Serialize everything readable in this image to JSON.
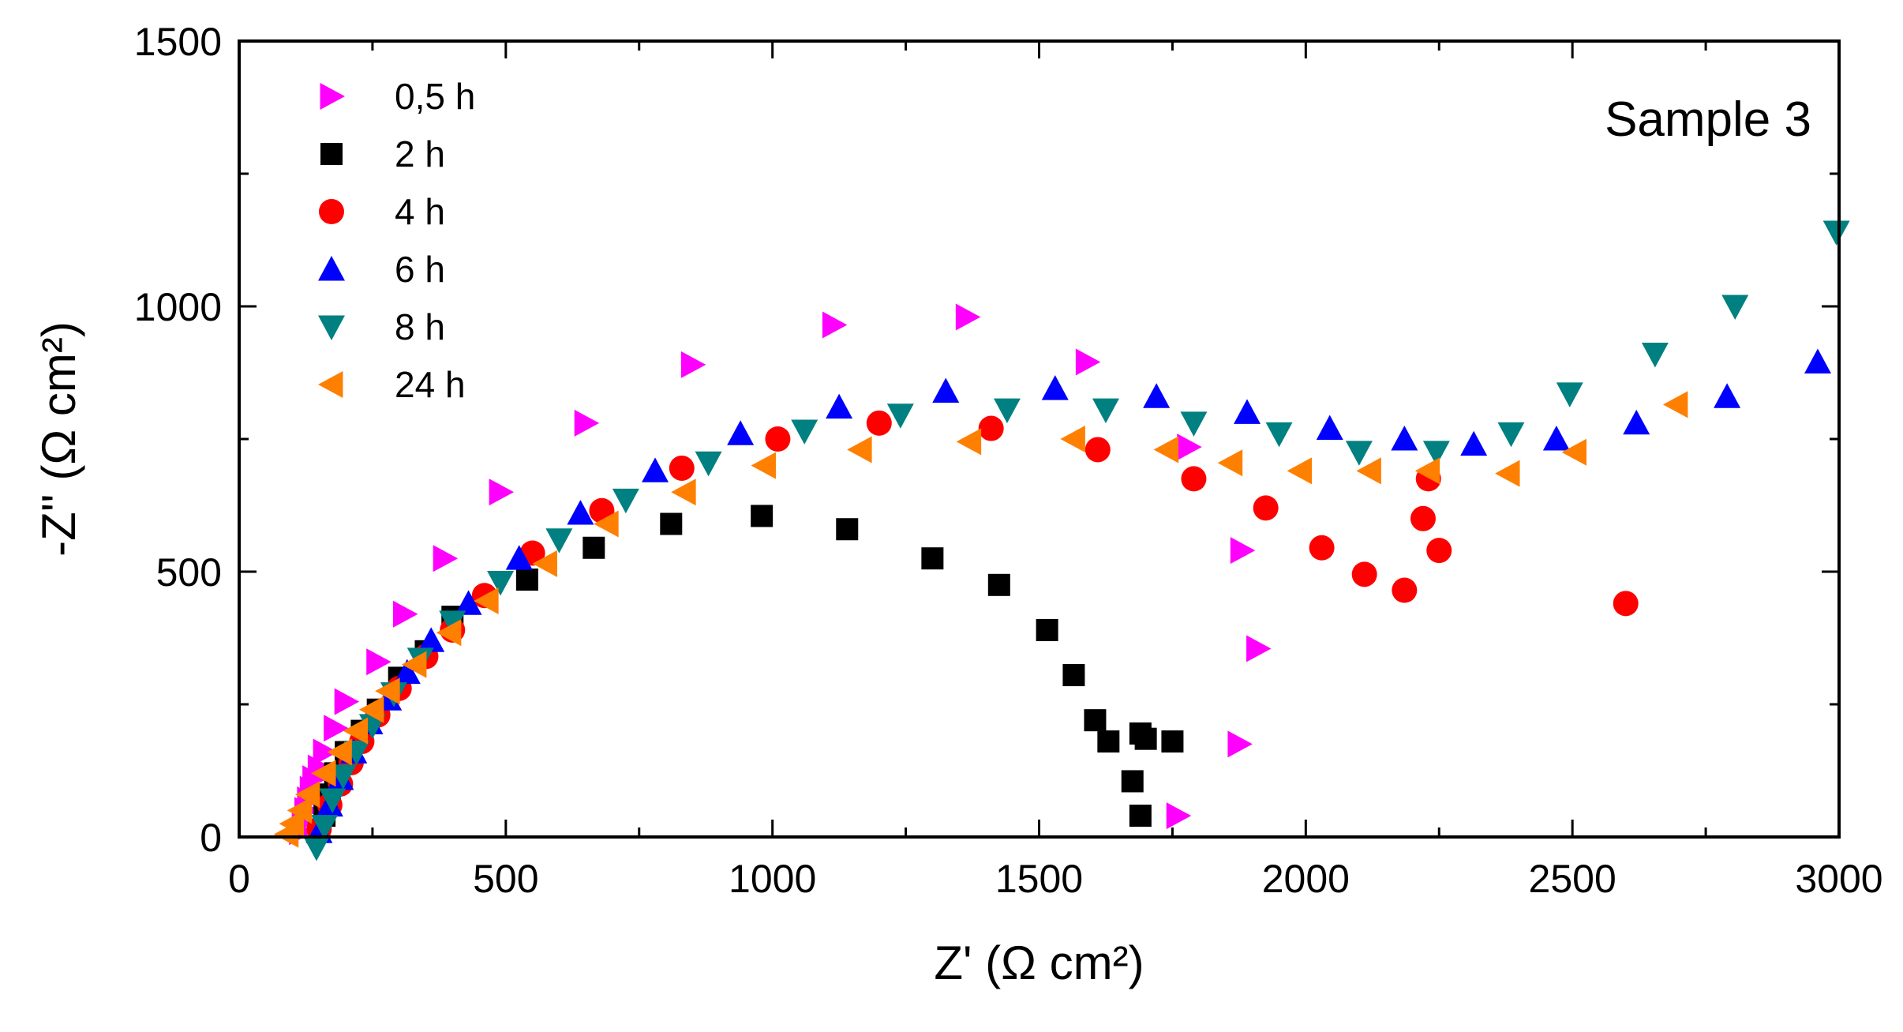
{
  "chart_data": {
    "type": "scatter",
    "title": "",
    "annotation": "Sample 3",
    "xlabel": "Z' (Ω cm²)",
    "ylabel": "-Z'' (Ω cm²)",
    "xlim": [
      0,
      3000
    ],
    "ylim": [
      0,
      1500
    ],
    "xticks": [
      0,
      500,
      1000,
      1500,
      2000,
      2500,
      3000
    ],
    "yticks": [
      0,
      500,
      1000,
      1500
    ],
    "grid": false,
    "legend_position": "top-left",
    "series": [
      {
        "name": "0,5 h",
        "marker": "triangle-right",
        "color": "#ff00ff",
        "points": [
          [
            115,
            10
          ],
          [
            120,
            30
          ],
          [
            125,
            50
          ],
          [
            130,
            70
          ],
          [
            135,
            90
          ],
          [
            140,
            110
          ],
          [
            150,
            130
          ],
          [
            160,
            160
          ],
          [
            180,
            205
          ],
          [
            200,
            255
          ],
          [
            260,
            330
          ],
          [
            310,
            420
          ],
          [
            385,
            525
          ],
          [
            490,
            650
          ],
          [
            650,
            780
          ],
          [
            850,
            890
          ],
          [
            1115,
            965
          ],
          [
            1365,
            980
          ],
          [
            1590,
            895
          ],
          [
            1780,
            735
          ],
          [
            1880,
            540
          ],
          [
            1910,
            355
          ],
          [
            1875,
            175
          ],
          [
            1760,
            40
          ]
        ]
      },
      {
        "name": "2 h",
        "marker": "square",
        "color": "#000000",
        "points": [
          [
            150,
            10
          ],
          [
            160,
            40
          ],
          [
            170,
            80
          ],
          [
            180,
            120
          ],
          [
            200,
            160
          ],
          [
            230,
            200
          ],
          [
            260,
            240
          ],
          [
            300,
            300
          ],
          [
            350,
            350
          ],
          [
            400,
            415
          ],
          [
            540,
            485
          ],
          [
            665,
            545
          ],
          [
            810,
            590
          ],
          [
            980,
            605
          ],
          [
            1140,
            580
          ],
          [
            1300,
            525
          ],
          [
            1425,
            475
          ],
          [
            1515,
            390
          ],
          [
            1565,
            305
          ],
          [
            1605,
            220
          ],
          [
            1630,
            180
          ],
          [
            1675,
            105
          ],
          [
            1690,
            195
          ],
          [
            1700,
            185
          ],
          [
            1750,
            180
          ],
          [
            1690,
            40
          ]
        ]
      },
      {
        "name": "4 h",
        "marker": "circle",
        "color": "#ff0000",
        "points": [
          [
            150,
            15
          ],
          [
            170,
            60
          ],
          [
            190,
            100
          ],
          [
            210,
            140
          ],
          [
            230,
            180
          ],
          [
            260,
            230
          ],
          [
            300,
            280
          ],
          [
            350,
            340
          ],
          [
            400,
            390
          ],
          [
            460,
            455
          ],
          [
            550,
            535
          ],
          [
            680,
            615
          ],
          [
            830,
            695
          ],
          [
            1010,
            750
          ],
          [
            1200,
            780
          ],
          [
            1410,
            770
          ],
          [
            1610,
            730
          ],
          [
            1790,
            675
          ],
          [
            1925,
            620
          ],
          [
            2030,
            545
          ],
          [
            2110,
            495
          ],
          [
            2185,
            465
          ],
          [
            2220,
            600
          ],
          [
            2230,
            675
          ],
          [
            2250,
            540
          ],
          [
            2600,
            440
          ]
        ]
      },
      {
        "name": "6 h",
        "marker": "triangle-up",
        "color": "#0000ff",
        "points": [
          [
            150,
            10
          ],
          [
            170,
            60
          ],
          [
            190,
            110
          ],
          [
            215,
            160
          ],
          [
            245,
            215
          ],
          [
            280,
            260
          ],
          [
            315,
            310
          ],
          [
            360,
            370
          ],
          [
            430,
            440
          ],
          [
            525,
            525
          ],
          [
            640,
            610
          ],
          [
            780,
            690
          ],
          [
            940,
            760
          ],
          [
            1125,
            810
          ],
          [
            1325,
            840
          ],
          [
            1530,
            845
          ],
          [
            1720,
            830
          ],
          [
            1890,
            800
          ],
          [
            2045,
            770
          ],
          [
            2185,
            750
          ],
          [
            2315,
            740
          ],
          [
            2470,
            750
          ],
          [
            2620,
            780
          ],
          [
            2790,
            830
          ],
          [
            2960,
            895
          ]
        ]
      },
      {
        "name": "8 h",
        "marker": "triangle-down",
        "color": "#008080",
        "points": [
          [
            145,
            -20
          ],
          [
            160,
            20
          ],
          [
            175,
            70
          ],
          [
            195,
            115
          ],
          [
            220,
            160
          ],
          [
            250,
            210
          ],
          [
            290,
            270
          ],
          [
            340,
            335
          ],
          [
            400,
            405
          ],
          [
            490,
            480
          ],
          [
            600,
            560
          ],
          [
            725,
            635
          ],
          [
            880,
            705
          ],
          [
            1060,
            765
          ],
          [
            1240,
            795
          ],
          [
            1440,
            805
          ],
          [
            1625,
            805
          ],
          [
            1790,
            780
          ],
          [
            1950,
            760
          ],
          [
            2100,
            725
          ],
          [
            2245,
            725
          ],
          [
            2385,
            760
          ],
          [
            2495,
            835
          ],
          [
            2655,
            910
          ],
          [
            2805,
            1000
          ],
          [
            2995,
            1140
          ]
        ]
      },
      {
        "name": "24 h",
        "marker": "triangle-left",
        "color": "#ff7f00",
        "points": [
          [
            90,
            5
          ],
          [
            100,
            25
          ],
          [
            115,
            50
          ],
          [
            130,
            80
          ],
          [
            160,
            120
          ],
          [
            190,
            160
          ],
          [
            220,
            200
          ],
          [
            250,
            240
          ],
          [
            280,
            275
          ],
          [
            330,
            325
          ],
          [
            395,
            385
          ],
          [
            465,
            445
          ],
          [
            575,
            515
          ],
          [
            690,
            590
          ],
          [
            835,
            650
          ],
          [
            985,
            700
          ],
          [
            1165,
            730
          ],
          [
            1370,
            745
          ],
          [
            1565,
            750
          ],
          [
            1740,
            730
          ],
          [
            1860,
            705
          ],
          [
            1990,
            690
          ],
          [
            2120,
            690
          ],
          [
            2230,
            690
          ],
          [
            2380,
            685
          ],
          [
            2505,
            725
          ],
          [
            2695,
            815
          ]
        ]
      }
    ]
  }
}
